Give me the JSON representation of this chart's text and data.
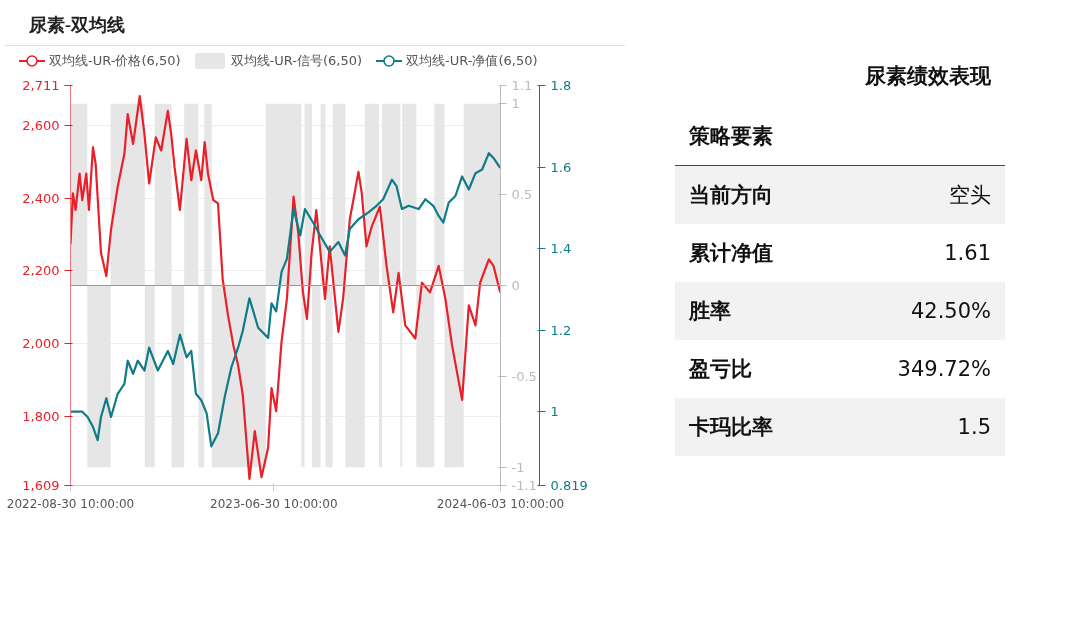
{
  "chart_data": [
    {
      "type": "line",
      "title": "尿素-双均线",
      "xlim": [
        "2022-08-30T10:00",
        "2024-06-03T10:00"
      ],
      "xticks": [
        {
          "value": "2022-08-30T10:00",
          "label": "2022-08-30 10:00:00"
        },
        {
          "value": "2023-06-30T10:00",
          "label": "2023-06-30 10:00:00"
        },
        {
          "value": "2024-06-03T10:00",
          "label": "2024-06-03 10:00:00"
        }
      ],
      "ylim": [
        1609,
        2711
      ],
      "yticks": [
        {
          "value": 1609,
          "label": "1,609"
        },
        {
          "value": 1800,
          "label": "1,800"
        },
        {
          "value": 2000,
          "label": "2,000"
        },
        {
          "value": 2200,
          "label": "2,200"
        },
        {
          "value": 2400,
          "label": "2,400"
        },
        {
          "value": 2600,
          "label": "2,600"
        },
        {
          "value": 2711,
          "label": "2,711"
        }
      ],
      "y2lim": [
        -1.1,
        1.1
      ],
      "y2ticks": [
        -1.1,
        -1,
        -0.5,
        0,
        0.5,
        1,
        1.1
      ],
      "y3lim": [
        0.819,
        1.8
      ],
      "y3ticks": [
        0.819,
        1,
        1.2,
        1.4,
        1.6,
        1.8
      ],
      "grid": "y",
      "legend": "top left",
      "ref_lines": [
        {
          "axis": "y2",
          "value": 0,
          "color": "#999999"
        }
      ],
      "series": [
        {
          "name": "双均线-UR-价格(6,50)",
          "type": "line",
          "color": "#e8202a",
          "x": [
            "2022-08-30T10:00",
            "2022-09-03",
            "2022-09-07",
            "2022-09-13",
            "2022-09-17",
            "2022-09-23",
            "2022-09-27",
            "2022-10-03",
            "2022-10-07",
            "2022-10-15",
            "2022-10-23",
            "2022-10-30",
            "2022-11-09",
            "2022-11-19",
            "2022-11-24",
            "2022-12-02",
            "2022-12-12",
            "2022-12-19",
            "2022-12-26",
            "2023-01-05",
            "2023-01-13",
            "2023-01-23",
            "2023-01-28",
            "2023-02-02",
            "2023-02-10",
            "2023-02-20",
            "2023-02-27",
            "2023-03-06",
            "2023-03-14",
            "2023-03-19",
            "2023-03-24",
            "2023-04-01",
            "2023-04-08",
            "2023-04-15",
            "2023-04-23",
            "2023-05-01",
            "2023-05-08",
            "2023-05-15",
            "2023-05-25",
            "2023-06-02",
            "2023-06-12",
            "2023-06-22",
            "2023-06-27",
            "2023-07-04",
            "2023-07-12",
            "2023-07-20",
            "2023-07-30",
            "2023-08-06",
            "2023-08-13",
            "2023-08-19",
            "2023-08-26",
            "2023-09-02",
            "2023-09-15",
            "2023-09-22",
            "2023-10-05",
            "2023-10-12",
            "2023-10-22",
            "2023-11-04",
            "2023-11-09",
            "2023-11-16",
            "2023-11-24",
            "2023-12-06",
            "2023-12-16",
            "2023-12-26",
            "2024-01-03",
            "2024-01-13",
            "2024-01-28",
            "2024-02-07",
            "2024-02-19",
            "2024-03-03",
            "2024-03-13",
            "2024-03-23",
            "2024-04-07",
            "2024-04-17",
            "2024-04-27",
            "2024-05-04",
            "2024-05-17",
            "2024-05-24",
            "2024-06-03"
          ],
          "values": [
            2273,
            2414,
            2368,
            2468,
            2395,
            2468,
            2368,
            2541,
            2495,
            2250,
            2186,
            2314,
            2432,
            2523,
            2632,
            2550,
            2682,
            2577,
            2441,
            2568,
            2532,
            2641,
            2577,
            2486,
            2368,
            2564,
            2450,
            2532,
            2450,
            2555,
            2468,
            2395,
            2386,
            2177,
            2077,
            1995,
            1941,
            1859,
            1627,
            1759,
            1632,
            1714,
            1877,
            1814,
            2005,
            2123,
            2405,
            2305,
            2141,
            2068,
            2250,
            2368,
            2123,
            2268,
            2032,
            2123,
            2341,
            2473,
            2414,
            2268,
            2323,
            2377,
            2214,
            2086,
            2195,
            2050,
            2014,
            2168,
            2141,
            2214,
            2123,
            1995,
            1845,
            2105,
            2050,
            2168,
            2232,
            2214,
            2141
          ]
        },
        {
          "name": "双均线-UR-信号(6,50)",
          "type": "bar",
          "axis": "y2",
          "color": "#e6e6e6",
          "x": [
            "2022-09-12",
            "2022-10-12",
            "2022-11-24",
            "2022-12-27",
            "2023-01-16",
            "2023-02-07",
            "2023-02-27",
            "2023-03-14",
            "2023-03-24",
            "2023-05-09",
            "2023-07-15",
            "2023-08-13",
            "2023-08-21",
            "2023-09-02",
            "2023-09-12",
            "2023-09-21",
            "2023-10-06",
            "2023-10-30",
            "2023-11-24",
            "2023-12-07",
            "2023-12-23",
            "2024-01-07",
            "2024-01-19",
            "2024-02-12",
            "2024-03-04",
            "2024-03-26",
            "2024-05-08"
          ],
          "values": [
            1,
            -1,
            1,
            -1,
            1,
            -1,
            1,
            -1,
            1,
            -1,
            1,
            -1,
            1,
            -1,
            1,
            -1,
            1,
            -1,
            1,
            -1,
            1,
            -1,
            1,
            -1,
            1,
            -1,
            1
          ]
        },
        {
          "name": "双均线-UR-净值(6,50)",
          "type": "line",
          "axis": "y3",
          "color": "#0f7c86",
          "x": [
            "2022-08-30T10:00",
            "2022-09-17",
            "2022-09-25",
            "2022-10-03",
            "2022-10-10",
            "2022-10-15",
            "2022-10-23",
            "2022-10-30",
            "2022-11-09",
            "2022-11-19",
            "2022-11-24",
            "2022-12-02",
            "2022-12-09",
            "2022-12-19",
            "2022-12-26",
            "2023-01-08",
            "2023-01-23",
            "2023-01-31",
            "2023-02-10",
            "2023-02-20",
            "2023-02-27",
            "2023-03-06",
            "2023-03-14",
            "2023-03-22",
            "2023-03-29",
            "2023-04-08",
            "2023-04-18",
            "2023-04-28",
            "2023-05-08",
            "2023-05-15",
            "2023-05-25",
            "2023-06-07",
            "2023-06-22",
            "2023-06-27",
            "2023-07-04",
            "2023-07-12",
            "2023-07-20",
            "2023-07-30",
            "2023-08-09",
            "2023-08-16",
            "2023-08-31",
            "2023-09-05",
            "2023-09-22",
            "2023-10-05",
            "2023-10-15",
            "2023-10-22",
            "2023-11-04",
            "2023-11-19",
            "2023-12-01",
            "2023-12-11",
            "2023-12-24",
            "2023-12-31",
            "2024-01-08",
            "2024-01-18",
            "2024-02-02",
            "2024-02-12",
            "2024-02-24",
            "2024-03-03",
            "2024-03-10",
            "2024-03-18",
            "2024-03-28",
            "2024-04-07",
            "2024-04-17",
            "2024-04-27",
            "2024-05-07",
            "2024-05-17",
            "2024-05-24",
            "2024-06-03"
          ],
          "values": [
            1.0,
            1.0,
            0.987,
            0.963,
            0.93,
            0.987,
            1.033,
            0.987,
            1.044,
            1.068,
            1.125,
            1.093,
            1.125,
            1.101,
            1.157,
            1.101,
            1.149,
            1.117,
            1.189,
            1.133,
            1.149,
            1.044,
            1.028,
            0.996,
            0.915,
            0.947,
            1.036,
            1.109,
            1.157,
            1.198,
            1.278,
            1.206,
            1.181,
            1.266,
            1.246,
            1.343,
            1.375,
            1.497,
            1.432,
            1.497,
            1.456,
            1.44,
            1.392,
            1.416,
            1.383,
            1.448,
            1.472,
            1.489,
            1.505,
            1.521,
            1.569,
            1.553,
            1.497,
            1.505,
            1.497,
            1.521,
            1.505,
            1.48,
            1.464,
            1.513,
            1.529,
            1.577,
            1.545,
            1.585,
            1.594,
            1.634,
            1.622,
            1.598
          ]
        }
      ]
    },
    {
      "type": "other",
      "title": "尿素绩效表现",
      "annotations": [
        "策略要素",
        "当前方向",
        "空头",
        "累计净值",
        "1.61",
        "胜率",
        "42.50%",
        "盈亏比",
        "349.72%",
        "卡玛比率",
        "1.5"
      ]
    }
  ]
}
